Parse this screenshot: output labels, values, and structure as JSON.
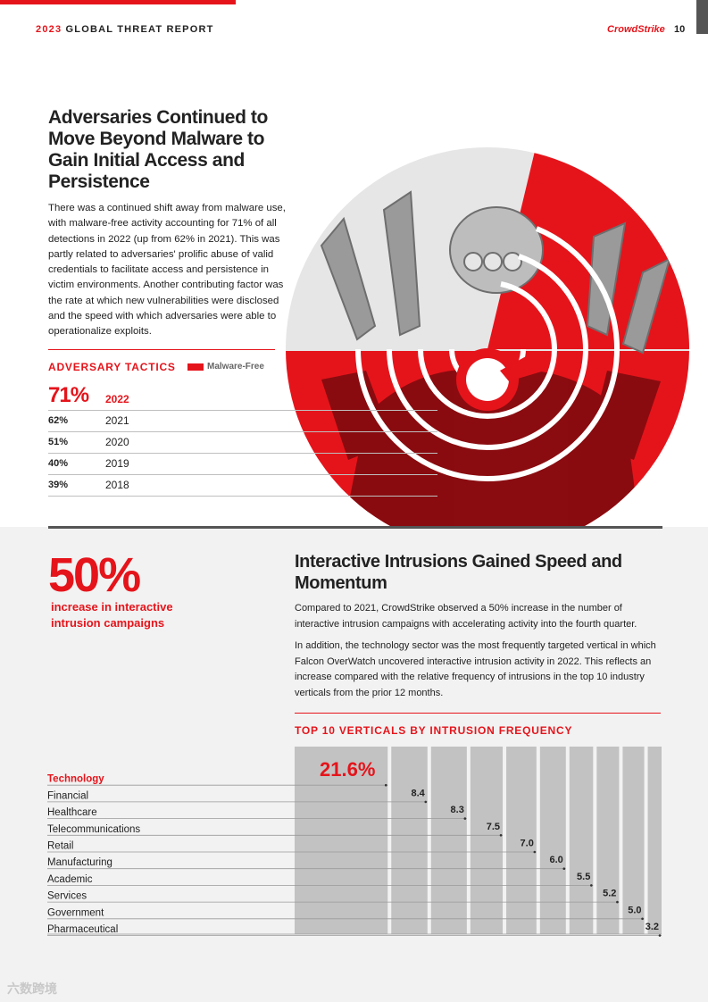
{
  "header": {
    "year": "2023",
    "title": "GLOBAL THREAT REPORT",
    "brand": "CrowdStrike",
    "page_number": "10"
  },
  "section1": {
    "heading": "Adversaries Continued to Move Beyond Malware to Gain Initial Access and Persistence",
    "body": "There was a continued shift away from malware use, with malware-free activity accounting for 71% of all detections in 2022 (up from 62% in 2021). This was partly related to adversaries' prolific abuse of valid credentials to facilitate access and persistence in victim environments. Another contributing factor was the rate at which new vulnerabilities were disclosed and the speed with which adversaries were able to operationalize exploits."
  },
  "tactics": {
    "title": "ADVERSARY TACTICS",
    "legend": "Malware-Free",
    "rows": [
      {
        "pct": "71%",
        "year": "2022"
      },
      {
        "pct": "62%",
        "year": "2021"
      },
      {
        "pct": "51%",
        "year": "2020"
      },
      {
        "pct": "40%",
        "year": "2019"
      },
      {
        "pct": "39%",
        "year": "2018"
      }
    ]
  },
  "section2": {
    "stat": "50%",
    "stat_label": "increase in interactive intrusion campaigns",
    "heading": "Interactive Intrusions Gained Speed and Momentum",
    "para1": "Compared to 2021, CrowdStrike observed a 50% increase in the number of interactive intrusion campaigns with accelerating activity into the fourth quarter.",
    "para2": "In addition, the technology sector was the most frequently targeted vertical in which Falcon OverWatch uncovered interactive intrusion activity in 2022. This reflects an increase compared with the relative frequency of intrusions in the top 10 industry verticals from the prior 12 months."
  },
  "chart_data": {
    "type": "bar",
    "title": "TOP 10 VERTICALS BY INTRUSION FREQUENCY",
    "categories": [
      "Technology",
      "Financial",
      "Healthcare",
      "Telecommunications",
      "Retail",
      "Manufacturing",
      "Academic",
      "Services",
      "Government",
      "Pharmaceutical"
    ],
    "values": [
      21.6,
      8.4,
      8.3,
      7.5,
      7.0,
      6.0,
      5.5,
      5.2,
      5.0,
      3.2
    ],
    "value_labels": [
      "21.6%",
      "8.4",
      "8.3",
      "7.5",
      "7.0",
      "6.0",
      "5.5",
      "5.2",
      "5.0",
      "3.2"
    ],
    "highlight_color": "#e5141b",
    "bar_color": "#c2c2c2"
  },
  "watermark": "六数跨境"
}
